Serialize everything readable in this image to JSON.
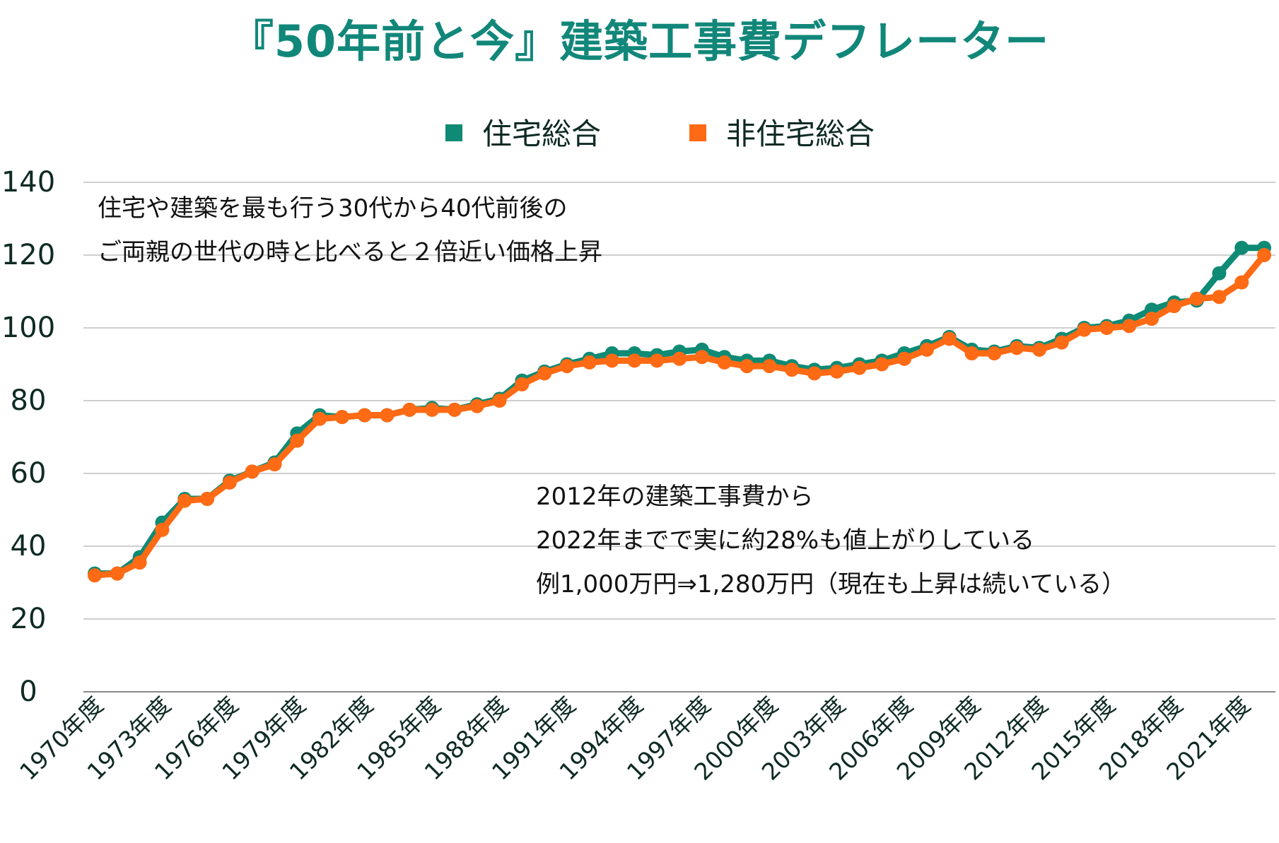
{
  "chart_data": {
    "type": "line",
    "title": "『50年前と今』建築工事費デフレーター",
    "xlabel": "",
    "ylabel": "",
    "ylim": [
      0,
      140
    ],
    "yticks": [
      0,
      20,
      40,
      60,
      80,
      100,
      120,
      140
    ],
    "grid": true,
    "legend_position": "top-center",
    "x": [
      1970,
      1971,
      1972,
      1973,
      1974,
      1975,
      1976,
      1977,
      1978,
      1979,
      1980,
      1981,
      1982,
      1983,
      1984,
      1985,
      1986,
      1987,
      1988,
      1989,
      1990,
      1991,
      1992,
      1993,
      1994,
      1995,
      1996,
      1997,
      1998,
      1999,
      2000,
      2001,
      2002,
      2003,
      2004,
      2005,
      2006,
      2007,
      2008,
      2009,
      2010,
      2011,
      2012,
      2013,
      2014,
      2015,
      2016,
      2017,
      2018,
      2019,
      2020,
      2021,
      2022
    ],
    "xtick_labels": [
      "1970年度",
      "1973年度",
      "1976年度",
      "1979年度",
      "1982年度",
      "1985年度",
      "1988年度",
      "1991年度",
      "1994年度",
      "1997年度",
      "2000年度",
      "2003年度",
      "2006年度",
      "2009年度",
      "2012年度",
      "2015年度",
      "2018年度",
      "2021年度"
    ],
    "xtick_years": [
      1970,
      1973,
      1976,
      1979,
      1982,
      1985,
      1988,
      1991,
      1994,
      1997,
      2000,
      2003,
      2006,
      2009,
      2012,
      2015,
      2018,
      2021
    ],
    "series": [
      {
        "name": "住宅総合",
        "color": "#0f8a74",
        "values": [
          32.5,
          32.5,
          37,
          46.5,
          53,
          53,
          58,
          60.5,
          63,
          71,
          76,
          75.5,
          76,
          76,
          77.5,
          78,
          77.5,
          79,
          80.5,
          85.5,
          88,
          90,
          91.5,
          93,
          93,
          92.5,
          93.5,
          94,
          92,
          91,
          91,
          89.5,
          88.5,
          89,
          90,
          91,
          93,
          95,
          97.5,
          94,
          93.5,
          95,
          94.5,
          97,
          100,
          100.5,
          102,
          105,
          107,
          107.5,
          115,
          122,
          122
        ]
      },
      {
        "name": "非住宅総合",
        "color": "#ff6a14",
        "values": [
          32,
          32.5,
          35.5,
          44.5,
          52.5,
          53,
          57.5,
          60.5,
          62.5,
          69,
          75,
          75.5,
          76,
          76,
          77.5,
          77.5,
          77.5,
          78.5,
          80,
          84.5,
          87.5,
          89.5,
          90.5,
          91,
          91,
          91,
          91.5,
          92,
          90.5,
          89.5,
          89.5,
          88.5,
          87.5,
          88,
          89,
          90,
          91.5,
          94,
          97,
          93,
          93,
          94.5,
          94,
          96,
          99.5,
          100,
          100.5,
          102.5,
          106,
          108,
          108.5,
          112.5,
          120
        ]
      }
    ],
    "annotations": [
      [
        "住宅や建築を最も行う30代から40代前後の",
        "ご両親の世代の時と比べると２倍近い価格上昇"
      ],
      [
        "2012年の建築工事費から",
        "2022年までで実に約28%も値上がりしている",
        "例1,000万円⇒1,280万円（現在も上昇は続いている）"
      ]
    ]
  }
}
